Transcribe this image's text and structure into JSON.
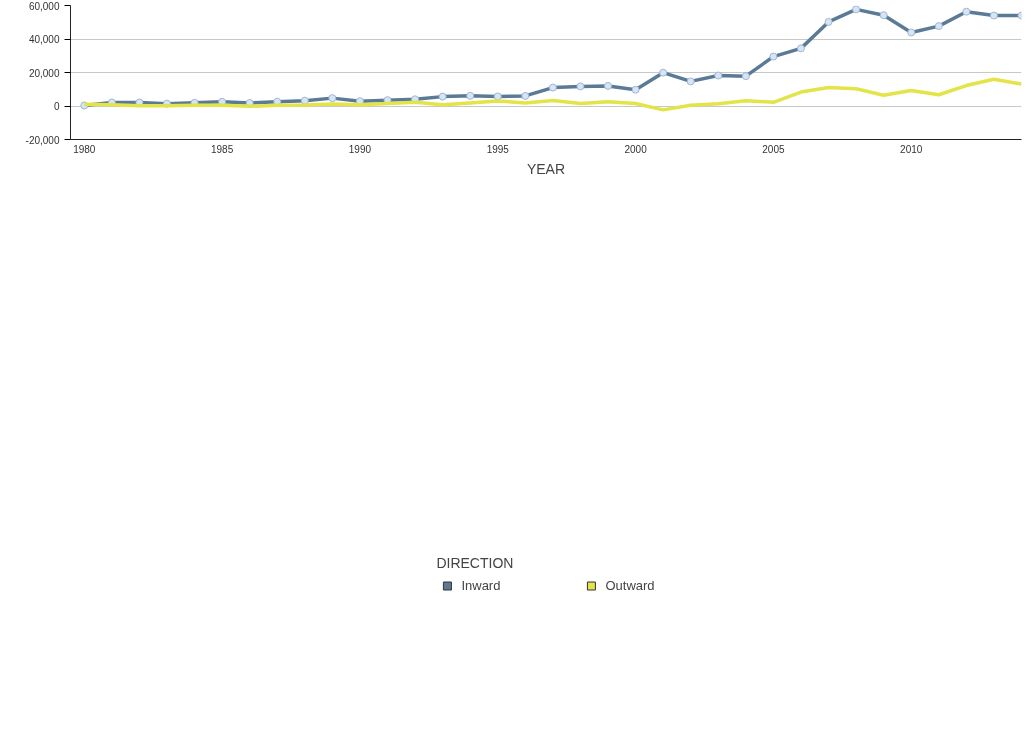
{
  "chart_data": {
    "type": "line",
    "xlabel": "YEAR",
    "legend_title": "DIRECTION",
    "x": [
      1980,
      1981,
      1982,
      1983,
      1984,
      1985,
      1986,
      1987,
      1988,
      1989,
      1990,
      1991,
      1992,
      1993,
      1994,
      1995,
      1996,
      1997,
      1998,
      1999,
      2000,
      2001,
      2002,
      2003,
      2004,
      2005,
      2006,
      2007,
      2008,
      2009,
      2010,
      2011,
      2012,
      2013,
      2014
    ],
    "series": [
      {
        "name": "Inward",
        "color": "#5b7a96",
        "marker": "circle",
        "values": [
          300,
          2100,
          2100,
          1400,
          1900,
          2500,
          1800,
          2600,
          3200,
          4700,
          2900,
          3500,
          4000,
          5600,
          6100,
          5700,
          6000,
          11000,
          11700,
          12000,
          9700,
          19900,
          14700,
          18200,
          17800,
          29500,
          34400,
          50200,
          57700,
          54200,
          43900,
          47700,
          56300,
          54000,
          54000
        ]
      },
      {
        "name": "Outward",
        "color": "#e3e34a",
        "marker": "none",
        "values": [
          1100,
          800,
          200,
          200,
          400,
          400,
          -200,
          400,
          600,
          1200,
          700,
          1500,
          2300,
          700,
          1800,
          3000,
          1800,
          3300,
          1500,
          2500,
          1500,
          -2300,
          400,
          1400,
          3200,
          2200,
          8300,
          11100,
          10300,
          6400,
          9200,
          6700,
          12200,
          16000,
          13100
        ]
      }
    ],
    "xlim": [
      1979.5,
      2014
    ],
    "xticks": [
      1980,
      1985,
      1990,
      1995,
      2000,
      2005,
      2010
    ],
    "ylim": [
      -20000,
      60000
    ],
    "yticks": [
      {
        "value": -20000,
        "label": "-20,000"
      },
      {
        "value": 0,
        "label": "0"
      },
      {
        "value": 20000,
        "label": "20,000"
      },
      {
        "value": 40000,
        "label": "40,000"
      },
      {
        "value": 60000,
        "label": "60,000"
      }
    ],
    "grid": "y",
    "legend": "bottom",
    "line_style": "solid"
  }
}
